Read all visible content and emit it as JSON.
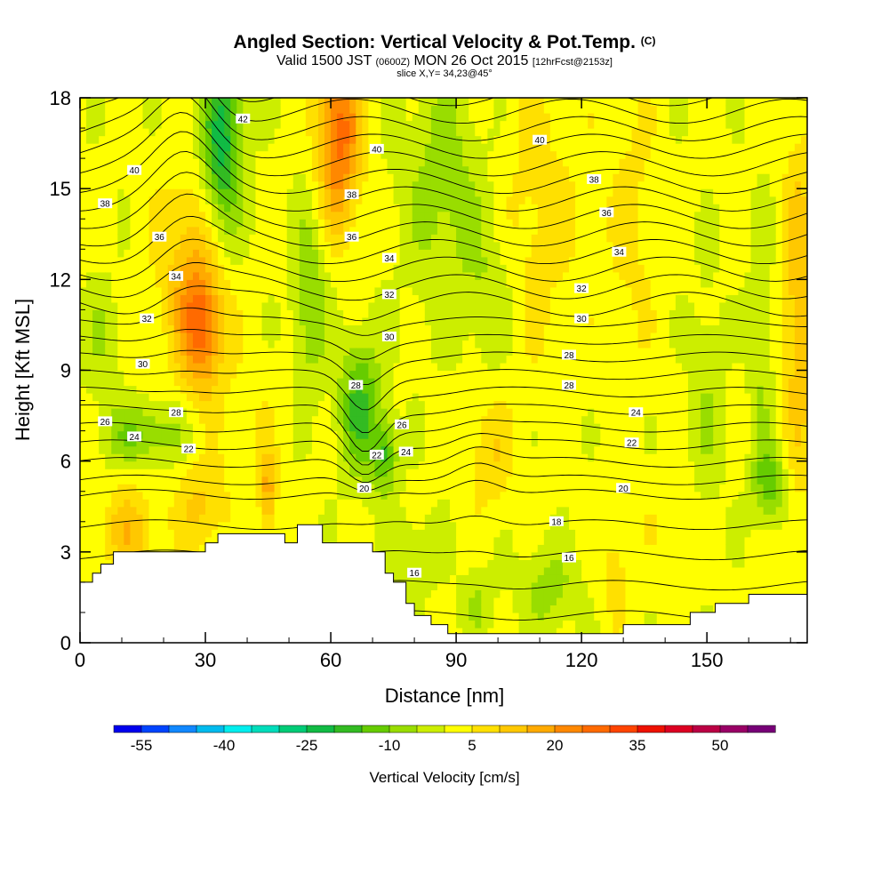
{
  "header": {
    "title": "Angled Section: Vertical Velocity & Pot.Temp.",
    "title_unit": "(C)",
    "valid_prefix": "Valid 1500 JST",
    "valid_utc": "(0600Z)",
    "valid_date": "MON 26 Oct 2015",
    "forecast": "[12hrFcst@2153z]",
    "slice": "slice X,Y= 34,23@45°"
  },
  "chart_data": {
    "type": "heatmap",
    "title": "Angled Section: Vertical Velocity & Pot.Temp.",
    "xlabel": "Distance [nm]",
    "ylabel": "Height [Kft MSL]",
    "xlim": [
      0,
      174
    ],
    "ylim": [
      0,
      18
    ],
    "x_ticks": [
      0,
      30,
      60,
      90,
      120,
      150
    ],
    "y_ticks": [
      0,
      3,
      6,
      9,
      12,
      15,
      18
    ],
    "colorbar": {
      "label": "Vertical Velocity [cm/s]",
      "tick_labels": [
        -55,
        -40,
        -25,
        -10,
        5,
        20,
        35,
        50
      ],
      "bins": [
        -60,
        -55,
        -50,
        -45,
        -40,
        -35,
        -30,
        -25,
        -20,
        -15,
        -10,
        -5,
        0,
        5,
        10,
        15,
        20,
        25,
        30,
        35,
        40,
        45,
        50,
        55,
        60
      ],
      "colors": [
        "#0000ee",
        "#0044ff",
        "#1188ff",
        "#00bbee",
        "#00eeee",
        "#00ddbb",
        "#00cc77",
        "#11bb44",
        "#33bb22",
        "#66cc00",
        "#99dd00",
        "#ccee00",
        "#ffff00",
        "#ffe000",
        "#ffc800",
        "#ffaa00",
        "#ff8800",
        "#ff6a00",
        "#ff4400",
        "#ee1100",
        "#dd0022",
        "#bb0044",
        "#990066",
        "#770077"
      ]
    },
    "terrain_kft": [
      [
        0,
        2
      ],
      [
        3,
        2
      ],
      [
        3,
        2.3
      ],
      [
        5,
        2.3
      ],
      [
        5,
        2.6
      ],
      [
        8,
        2.6
      ],
      [
        8,
        3
      ],
      [
        30,
        3
      ],
      [
        30,
        3.3
      ],
      [
        33,
        3.3
      ],
      [
        33,
        3.6
      ],
      [
        49,
        3.6
      ],
      [
        49,
        3.3
      ],
      [
        52,
        3.3
      ],
      [
        52,
        3.9
      ],
      [
        58,
        3.9
      ],
      [
        58,
        3.3
      ],
      [
        70,
        3.3
      ],
      [
        70,
        3
      ],
      [
        73,
        3
      ],
      [
        73,
        2.3
      ],
      [
        75,
        2.3
      ],
      [
        75,
        2
      ],
      [
        78,
        2
      ],
      [
        78,
        1.3
      ],
      [
        80,
        1.3
      ],
      [
        80,
        0.9
      ],
      [
        84,
        0.9
      ],
      [
        84,
        0.6
      ],
      [
        88,
        0.6
      ],
      [
        88,
        0.3
      ],
      [
        130,
        0.3
      ],
      [
        130,
        0.6
      ],
      [
        146,
        0.6
      ],
      [
        146,
        1
      ],
      [
        152,
        1
      ],
      [
        152,
        1.3
      ],
      [
        160,
        1.3
      ],
      [
        160,
        1.6
      ],
      [
        174,
        1.6
      ]
    ],
    "vv_features": [
      {
        "x": 34,
        "z": 16.5,
        "sx": 5,
        "sz": 3.2,
        "v": -24
      },
      {
        "x": 62,
        "z": 16.8,
        "sx": 5,
        "sz": 3,
        "v": 26
      },
      {
        "x": 29,
        "z": 10.3,
        "sx": 5,
        "sz": 2,
        "v": 21
      },
      {
        "x": 27,
        "z": 12.5,
        "sx": 8,
        "sz": 3,
        "v": 12
      },
      {
        "x": 55,
        "z": 11.5,
        "sx": 4,
        "sz": 3,
        "v": -12
      },
      {
        "x": 67,
        "z": 7.8,
        "sx": 5,
        "sz": 2.3,
        "v": -18
      },
      {
        "x": 73,
        "z": 6.2,
        "sx": 3,
        "sz": 1.2,
        "v": -16
      },
      {
        "x": 87,
        "z": 15,
        "sx": 10,
        "sz": 4,
        "v": -9
      },
      {
        "x": 98,
        "z": 11.5,
        "sx": 6,
        "sz": 2.5,
        "v": -6
      },
      {
        "x": 110,
        "z": 14,
        "sx": 10,
        "sz": 5,
        "v": 6
      },
      {
        "x": 132,
        "z": 14,
        "sx": 6,
        "sz": 5,
        "v": 5
      },
      {
        "x": 172,
        "z": 11,
        "sx": 4,
        "sz": 6,
        "v": 12
      },
      {
        "x": 15,
        "z": 6.9,
        "sx": 10,
        "sz": 1,
        "v": -12
      },
      {
        "x": 45,
        "z": 5,
        "sx": 2,
        "sz": 1.2,
        "v": 16
      },
      {
        "x": 12,
        "z": 3.7,
        "sx": 6,
        "sz": 1.4,
        "v": 12
      },
      {
        "x": 29,
        "z": 4.5,
        "sx": 6,
        "sz": 1.5,
        "v": 10
      },
      {
        "x": 112,
        "z": 1.8,
        "sx": 7,
        "sz": 1.4,
        "v": -9
      },
      {
        "x": 95,
        "z": 1.4,
        "sx": 4,
        "sz": 1.2,
        "v": -7
      },
      {
        "x": 165,
        "z": 5.3,
        "sx": 4,
        "sz": 1.3,
        "v": -14
      },
      {
        "x": 128,
        "z": 2.2,
        "sx": 3,
        "sz": 1.5,
        "v": 7
      },
      {
        "x": 98,
        "z": 6.2,
        "sx": 5,
        "sz": 1.8,
        "v": 8
      },
      {
        "x": 150,
        "z": 8,
        "sx": 4,
        "sz": 4,
        "v": -6
      },
      {
        "x": 163,
        "z": 10,
        "sx": 3,
        "sz": 4,
        "v": -7
      },
      {
        "x": 40,
        "z": 7.5,
        "sx": 8,
        "sz": 2,
        "v": 3
      },
      {
        "x": 5,
        "z": 10,
        "sx": 5,
        "sz": 2,
        "v": -6
      },
      {
        "x": 80,
        "z": 3,
        "sx": 6,
        "sz": 1.5,
        "v": -5
      },
      {
        "x": 140,
        "z": 4,
        "sx": 8,
        "sz": 1.5,
        "v": 2
      }
    ],
    "theta_contour_labels": [
      {
        "x": 39,
        "z": 17.3,
        "text": "42"
      },
      {
        "x": 13,
        "z": 15.6,
        "text": "40"
      },
      {
        "x": 71,
        "z": 16.3,
        "text": "40"
      },
      {
        "x": 110,
        "z": 16.6,
        "text": "40"
      },
      {
        "x": 6,
        "z": 14.5,
        "text": "38"
      },
      {
        "x": 65,
        "z": 14.8,
        "text": "38"
      },
      {
        "x": 123,
        "z": 15.3,
        "text": "38"
      },
      {
        "x": 19,
        "z": 13.4,
        "text": "36"
      },
      {
        "x": 65,
        "z": 13.4,
        "text": "36"
      },
      {
        "x": 126,
        "z": 14.2,
        "text": "36"
      },
      {
        "x": 23,
        "z": 12.1,
        "text": "34"
      },
      {
        "x": 74,
        "z": 12.7,
        "text": "34"
      },
      {
        "x": 129,
        "z": 12.9,
        "text": "34"
      },
      {
        "x": 16,
        "z": 10.7,
        "text": "32"
      },
      {
        "x": 74,
        "z": 11.5,
        "text": "32"
      },
      {
        "x": 120,
        "z": 11.7,
        "text": "32"
      },
      {
        "x": 15,
        "z": 9.2,
        "text": "30"
      },
      {
        "x": 74,
        "z": 10.1,
        "text": "30"
      },
      {
        "x": 120,
        "z": 10.7,
        "text": "30"
      },
      {
        "x": 66,
        "z": 8.5,
        "text": "28"
      },
      {
        "x": 117,
        "z": 9.5,
        "text": "28"
      },
      {
        "x": 23,
        "z": 7.6,
        "text": "28"
      },
      {
        "x": 117,
        "z": 8.5,
        "text": "28"
      },
      {
        "x": 6,
        "z": 7.3,
        "text": "26"
      },
      {
        "x": 77,
        "z": 7.2,
        "text": "26"
      },
      {
        "x": 133,
        "z": 7.6,
        "text": "24"
      },
      {
        "x": 13,
        "z": 6.8,
        "text": "24"
      },
      {
        "x": 78,
        "z": 6.3,
        "text": "24"
      },
      {
        "x": 26,
        "z": 6.4,
        "text": "22"
      },
      {
        "x": 71,
        "z": 6.2,
        "text": "22"
      },
      {
        "x": 132,
        "z": 6.6,
        "text": "22"
      },
      {
        "x": 68,
        "z": 5.1,
        "text": "20"
      },
      {
        "x": 130,
        "z": 5.1,
        "text": "20"
      },
      {
        "x": 114,
        "z": 4,
        "text": "18"
      },
      {
        "x": 117,
        "z": 2.8,
        "text": "16"
      },
      {
        "x": 80,
        "z": 2.3,
        "text": "16"
      }
    ],
    "theta_levels": [
      16,
      17,
      18,
      19,
      20,
      21,
      22,
      23,
      24,
      25,
      26,
      27,
      28,
      29,
      30,
      31,
      32,
      33,
      34,
      35,
      36,
      37,
      38,
      39,
      40,
      41,
      42,
      43
    ]
  }
}
